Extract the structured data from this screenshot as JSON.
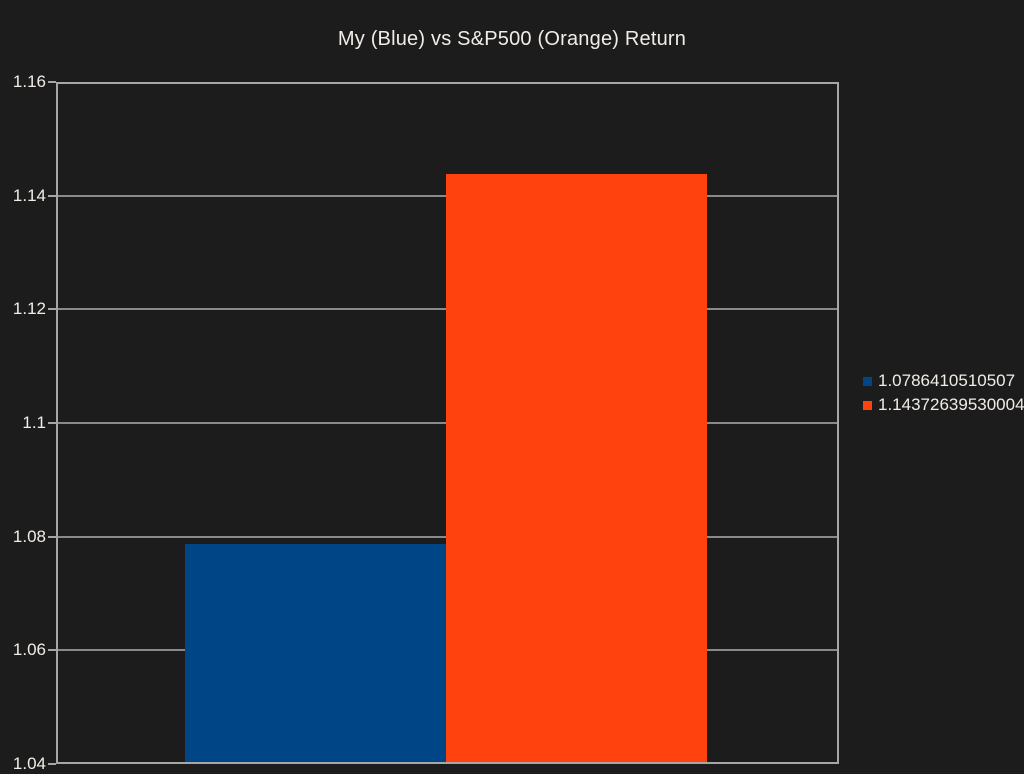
{
  "window": {
    "background": "#1c1c1c",
    "text_color": "#f1ede6"
  },
  "chart_data": {
    "type": "bar",
    "title": "My (Blue) vs S&P500 (Orange) Return",
    "categories": [
      ""
    ],
    "series": [
      {
        "name": "1.0786410510507",
        "values": [
          1.0786410510507
        ],
        "color": "#004586"
      },
      {
        "name": "1.14372639530004",
        "values": [
          1.14372639530004
        ],
        "color": "#ff420e"
      }
    ],
    "ylim": [
      1.04,
      1.16
    ],
    "yticks": [
      {
        "value": 1.16,
        "label": "1.16"
      },
      {
        "value": 1.14,
        "label": "1.14"
      },
      {
        "value": 1.12,
        "label": "1.12"
      },
      {
        "value": 1.1,
        "label": "1.1"
      },
      {
        "value": 1.08,
        "label": "1.08"
      },
      {
        "value": 1.06,
        "label": "1.06"
      },
      {
        "value": 1.04,
        "label": "1.04"
      }
    ],
    "grid": "horizontal-on",
    "legend_position": "right",
    "axis_color": "#a6a6a6",
    "grid_color": "#8a8a8a",
    "label_color": "#f1ede6"
  }
}
